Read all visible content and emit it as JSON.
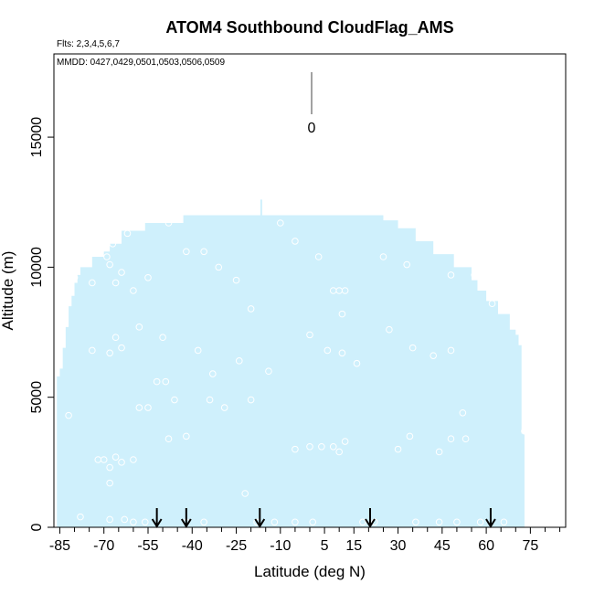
{
  "chart_data": {
    "type": "scatter",
    "title": "ATOM4 Southbound CloudFlag_AMS",
    "flights_note": "Flts: 2,3,4,5,6,7",
    "dates_note": "MMDD: 0427,0429,0501,0503,0506,0509",
    "xlabel": "Latitude (deg N)",
    "ylabel": "Altitude (m)",
    "xlim": [
      -87,
      87
    ],
    "ylim": [
      0,
      18200
    ],
    "x_ticks": [
      -85,
      -70,
      -55,
      -40,
      -25,
      -10,
      5,
      15,
      30,
      45,
      60,
      75
    ],
    "x_minor_ticks": [
      -80,
      -75,
      -65,
      -60,
      -50,
      -45,
      -35,
      -30,
      -20,
      -15,
      -5,
      0,
      10,
      20,
      25,
      35,
      40,
      50,
      55,
      65,
      70,
      80,
      85
    ],
    "y_ticks": [
      0,
      5000,
      10000,
      15000
    ],
    "legend": {
      "value_label": "0",
      "position": "top-center"
    },
    "colors": {
      "coverage": "#cff0fc",
      "points": "#ffffff",
      "arrows": "#000000",
      "axes": "#000000"
    },
    "coverage_profile": [
      [
        -86,
        5800
      ],
      [
        -85,
        6100
      ],
      [
        -84,
        6900
      ],
      [
        -83,
        7700
      ],
      [
        -82,
        8500
      ],
      [
        -81,
        8900
      ],
      [
        -80,
        9400
      ],
      [
        -79,
        9700
      ],
      [
        -78,
        10000
      ],
      [
        -74,
        10400
      ],
      [
        -70,
        10600
      ],
      [
        -68,
        10900
      ],
      [
        -64,
        11400
      ],
      [
        -56,
        11700
      ],
      [
        -43,
        12000
      ],
      [
        -30,
        12000
      ],
      [
        -15,
        12000
      ],
      [
        -5,
        12000
      ],
      [
        10,
        12000
      ],
      [
        22,
        12000
      ],
      [
        25,
        11800
      ],
      [
        30,
        11500
      ],
      [
        36,
        11000
      ],
      [
        42,
        10500
      ],
      [
        49,
        10000
      ],
      [
        55,
        9500
      ],
      [
        57,
        9100
      ],
      [
        60,
        8700
      ],
      [
        64,
        8200
      ],
      [
        68,
        7600
      ],
      [
        70,
        7400
      ],
      [
        71,
        7000
      ],
      [
        72,
        3600
      ],
      [
        73,
        0
      ]
    ],
    "coverage_spike": {
      "x": -16.5,
      "y": 12600
    },
    "arrow_latitudes": [
      -52,
      -42,
      -17,
      20.5,
      61.5
    ],
    "points": [
      [
        -80,
        9600
      ],
      [
        -74,
        9400
      ],
      [
        -69,
        10400
      ],
      [
        -68,
        10100
      ],
      [
        -67,
        10900
      ],
      [
        -62,
        11300
      ],
      [
        -64,
        9800
      ],
      [
        -66,
        9400
      ],
      [
        -60,
        9100
      ],
      [
        -55,
        9600
      ],
      [
        -48,
        11700
      ],
      [
        -42,
        10600
      ],
      [
        -36,
        10600
      ],
      [
        -31,
        10000
      ],
      [
        -25,
        9500
      ],
      [
        -20,
        8400
      ],
      [
        -10,
        11700
      ],
      [
        -5,
        11000
      ],
      [
        3,
        10400
      ],
      [
        8,
        9100
      ],
      [
        10,
        9100
      ],
      [
        12,
        9100
      ],
      [
        25,
        10400
      ],
      [
        33,
        10100
      ],
      [
        48,
        9700
      ],
      [
        56,
        9700
      ],
      [
        62,
        8600
      ],
      [
        -74,
        6800
      ],
      [
        -68,
        6700
      ],
      [
        -66,
        7300
      ],
      [
        -64,
        6900
      ],
      [
        -58,
        7700
      ],
      [
        -50,
        7300
      ],
      [
        -55,
        4600
      ],
      [
        -58,
        4600
      ],
      [
        -52,
        5600
      ],
      [
        -49,
        5600
      ],
      [
        -46,
        4900
      ],
      [
        -42,
        3500
      ],
      [
        -48,
        3400
      ],
      [
        -38,
        6800
      ],
      [
        -33,
        5900
      ],
      [
        -34,
        4900
      ],
      [
        -29,
        4600
      ],
      [
        -24,
        6400
      ],
      [
        -20,
        4900
      ],
      [
        -14,
        6000
      ],
      [
        0,
        7400
      ],
      [
        6,
        6800
      ],
      [
        11,
        6700
      ],
      [
        11,
        8200
      ],
      [
        16,
        6300
      ],
      [
        27,
        7600
      ],
      [
        35,
        6900
      ],
      [
        42,
        6600
      ],
      [
        48,
        6800
      ],
      [
        -82,
        4300
      ],
      [
        -72,
        2600
      ],
      [
        -70,
        2600
      ],
      [
        -68,
        2300
      ],
      [
        -66,
        2700
      ],
      [
        -64,
        2500
      ],
      [
        -60,
        2600
      ],
      [
        -68,
        1700
      ],
      [
        -68,
        300
      ],
      [
        -63,
        300
      ],
      [
        -60,
        200
      ],
      [
        -56,
        200
      ],
      [
        -42,
        200
      ],
      [
        -36,
        200
      ],
      [
        -22,
        1300
      ],
      [
        -18,
        200
      ],
      [
        -12,
        200
      ],
      [
        -5,
        200
      ],
      [
        1,
        200
      ],
      [
        4,
        3100
      ],
      [
        8,
        3100
      ],
      [
        10,
        2900
      ],
      [
        12,
        3300
      ],
      [
        18,
        200
      ],
      [
        22,
        200
      ],
      [
        30,
        3000
      ],
      [
        34,
        3500
      ],
      [
        44,
        2900
      ],
      [
        48,
        3400
      ],
      [
        53,
        3400
      ],
      [
        52,
        4400
      ],
      [
        36,
        200
      ],
      [
        44,
        200
      ],
      [
        50,
        200
      ],
      [
        58,
        200
      ],
      [
        66,
        200
      ],
      [
        73,
        3700
      ],
      [
        -5,
        3000
      ],
      [
        0,
        3100
      ],
      [
        -78,
        400
      ]
    ]
  }
}
